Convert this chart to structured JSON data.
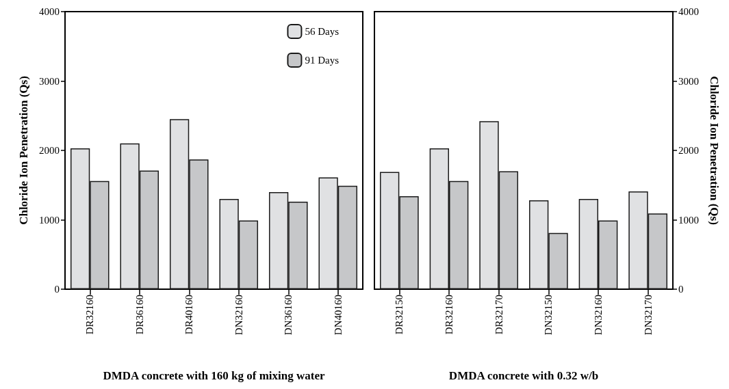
{
  "chart_data": [
    {
      "type": "bar",
      "xlabel": "DMDA concrete with 160 kg of mixing water",
      "ylabel": "Chloride Ion Penetration (Qs)",
      "categories": [
        "DR32160",
        "DR36160",
        "DR40160",
        "DN32160",
        "DN36160",
        "DN40160"
      ],
      "series": [
        {
          "name": "56 Days",
          "color": "#e0e1e3",
          "values": [
            2030,
            2100,
            2450,
            1300,
            1400,
            1610
          ]
        },
        {
          "name": "91 Days",
          "color": "#c6c7c9",
          "values": [
            1560,
            1710,
            1870,
            990,
            1260,
            1490
          ]
        }
      ],
      "ylim": [
        0,
        4000
      ],
      "yticks": [
        0,
        1000,
        2000,
        3000,
        4000
      ],
      "grid": false,
      "legend": "top right"
    },
    {
      "type": "bar",
      "xlabel": "DMDA concrete with 0.32 w/b",
      "y2label": "Chloride Ion Penetration (Qs)",
      "categories": [
        "DR32150",
        "DR32160",
        "DR32170",
        "DN32150",
        "DN32160",
        "DN32170"
      ],
      "series": [
        {
          "color": "#e0e1e3",
          "axis": "y2",
          "values": [
            1690,
            2030,
            2420,
            1280,
            1300,
            1410
          ]
        },
        {
          "color": "#c6c7c9",
          "axis": "y2",
          "values": [
            1340,
            1560,
            1700,
            810,
            990,
            1090
          ]
        }
      ],
      "y2lim": [
        0,
        4000
      ],
      "y2ticks": [
        0,
        1000,
        2000,
        3000,
        4000
      ],
      "grid": false,
      "legend": false
    }
  ]
}
